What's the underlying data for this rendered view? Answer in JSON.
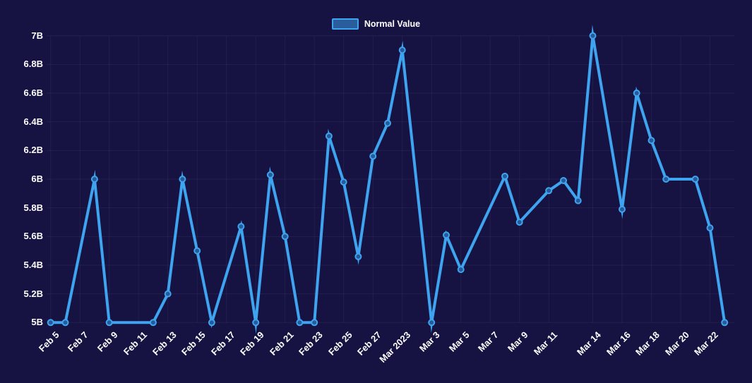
{
  "chart_data": {
    "type": "line",
    "title": "",
    "legend": {
      "position": "top-center",
      "label": "Normal Value"
    },
    "grid": true,
    "y_axis": {
      "range": [
        5,
        7
      ],
      "ticks": [
        {
          "label": "5B",
          "value": 5.0
        },
        {
          "label": "5.2B",
          "value": 5.2
        },
        {
          "label": "5.4B",
          "value": 5.4
        },
        {
          "label": "5.6B",
          "value": 5.6
        },
        {
          "label": "5.8B",
          "value": 5.8
        },
        {
          "label": "6B",
          "value": 6.0
        },
        {
          "label": "6.2B",
          "value": 6.2
        },
        {
          "label": "6.4B",
          "value": 6.4
        },
        {
          "label": "6.6B",
          "value": 6.6
        },
        {
          "label": "6.8B",
          "value": 6.8
        },
        {
          "label": "7B",
          "value": 7.0
        }
      ]
    },
    "x_axis": {
      "type": "time",
      "range_days": [
        0,
        46
      ],
      "ticks": [
        {
          "label": "Feb 5",
          "day": 0
        },
        {
          "label": "Feb 7",
          "day": 2
        },
        {
          "label": "Feb 9",
          "day": 4
        },
        {
          "label": "Feb 11",
          "day": 6
        },
        {
          "label": "Feb 13",
          "day": 8
        },
        {
          "label": "Feb 15",
          "day": 10
        },
        {
          "label": "Feb 17",
          "day": 12
        },
        {
          "label": "Feb 19",
          "day": 14
        },
        {
          "label": "Feb 21",
          "day": 16
        },
        {
          "label": "Feb 23",
          "day": 18
        },
        {
          "label": "Feb 25",
          "day": 20
        },
        {
          "label": "Feb 27",
          "day": 22
        },
        {
          "label": "Mar 2023",
          "day": 24
        },
        {
          "label": "Mar 3",
          "day": 26
        },
        {
          "label": "Mar 5",
          "day": 28
        },
        {
          "label": "Mar 7",
          "day": 30
        },
        {
          "label": "Mar 9",
          "day": 32
        },
        {
          "label": "Mar 11",
          "day": 34
        },
        {
          "label": "Mar 14",
          "day": 37
        },
        {
          "label": "Mar 16",
          "day": 39
        },
        {
          "label": "Mar 18",
          "day": 41
        },
        {
          "label": "Mar 20",
          "day": 43
        },
        {
          "label": "Mar 22",
          "day": 45
        }
      ]
    },
    "series": [
      {
        "name": "Normal Value",
        "points": [
          {
            "date": "Feb 5",
            "day": 0,
            "value": 5.0
          },
          {
            "date": "Feb 6",
            "day": 1,
            "value": 5.0
          },
          {
            "date": "Feb 8",
            "day": 3,
            "value": 6.0
          },
          {
            "date": "Feb 9",
            "day": 4,
            "value": 5.0
          },
          {
            "date": "Feb 12",
            "day": 7,
            "value": 5.0
          },
          {
            "date": "Feb 13",
            "day": 8,
            "value": 5.2
          },
          {
            "date": "Feb 14",
            "day": 9,
            "value": 6.0
          },
          {
            "date": "Feb 15",
            "day": 10,
            "value": 5.5
          },
          {
            "date": "Feb 16",
            "day": 11,
            "value": 5.0
          },
          {
            "date": "Feb 18",
            "day": 13,
            "value": 5.67
          },
          {
            "date": "Feb 19",
            "day": 14,
            "value": 5.0
          },
          {
            "date": "Feb 20",
            "day": 15,
            "value": 6.03
          },
          {
            "date": "Feb 21",
            "day": 16,
            "value": 5.6
          },
          {
            "date": "Feb 22",
            "day": 17,
            "value": 5.0
          },
          {
            "date": "Feb 23",
            "day": 18,
            "value": 5.0
          },
          {
            "date": "Feb 24",
            "day": 19,
            "value": 6.3
          },
          {
            "date": "Feb 25",
            "day": 20,
            "value": 5.98
          },
          {
            "date": "Feb 26",
            "day": 21,
            "value": 5.46
          },
          {
            "date": "Feb 27",
            "day": 22,
            "value": 6.16
          },
          {
            "date": "Feb 28",
            "day": 23,
            "value": 6.39
          },
          {
            "date": "Mar 1",
            "day": 24,
            "value": 6.9
          },
          {
            "date": "Mar 3",
            "day": 26,
            "value": 5.0
          },
          {
            "date": "Mar 4",
            "day": 27,
            "value": 5.61
          },
          {
            "date": "Mar 5",
            "day": 28,
            "value": 5.37
          },
          {
            "date": "Mar 8",
            "day": 31,
            "value": 6.02
          },
          {
            "date": "Mar 9",
            "day": 32,
            "value": 5.7
          },
          {
            "date": "Mar 11",
            "day": 34,
            "value": 5.92
          },
          {
            "date": "Mar 12",
            "day": 35,
            "value": 5.99
          },
          {
            "date": "Mar 13",
            "day": 36,
            "value": 5.85
          },
          {
            "date": "Mar 14",
            "day": 37,
            "value": 7.0
          },
          {
            "date": "Mar 16",
            "day": 39,
            "value": 5.79
          },
          {
            "date": "Mar 17",
            "day": 40,
            "value": 6.6
          },
          {
            "date": "Mar 18",
            "day": 41,
            "value": 6.27
          },
          {
            "date": "Mar 19",
            "day": 42,
            "value": 6.0
          },
          {
            "date": "Mar 21",
            "day": 44,
            "value": 6.0
          },
          {
            "date": "Mar 22",
            "day": 45,
            "value": 5.66
          },
          {
            "date": "Mar 23",
            "day": 46,
            "value": 5.0
          }
        ]
      }
    ],
    "colors": {
      "background": "#161242",
      "line": "#3EA4EF",
      "dot_fill": "#275A99",
      "legend_fill": "#2A5D9C",
      "grid": "rgba(255,255,255,0.055)",
      "text": "#FFFFFF"
    }
  }
}
